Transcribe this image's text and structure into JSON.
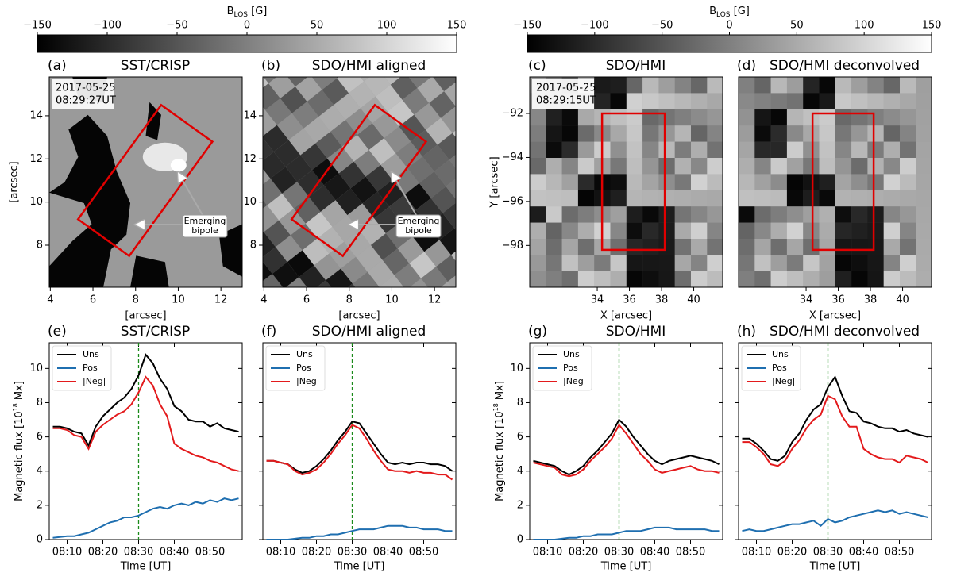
{
  "chart_data": [
    {
      "type": "colorbar",
      "label": "B",
      "label_sub": "LOS",
      "unit": " [G]",
      "lim": [
        -150,
        150
      ],
      "ticks": [
        {
          "value": -150,
          "label": "−150"
        },
        {
          "value": -100,
          "label": "−100"
        },
        {
          "value": -50,
          "label": "−50"
        },
        0,
        50,
        100,
        150
      ]
    },
    {
      "type": "colorbar",
      "label": "B",
      "label_sub": "LOS",
      "unit": " [G]",
      "lim": [
        -150,
        150
      ],
      "ticks": [
        {
          "value": -150,
          "label": "−150"
        },
        {
          "value": -100,
          "label": "−100"
        },
        {
          "value": -50,
          "label": "−50"
        },
        0,
        50,
        100,
        150
      ]
    },
    {
      "type": "image",
      "panel": "(a)",
      "title": "SST/CRISP",
      "date": "2017-05-25",
      "time": "08:29:27UT",
      "xlim": [
        3.95,
        13.0
      ],
      "ylim": [
        6.05,
        15.8
      ],
      "xticks": [
        4,
        6,
        8,
        10,
        12
      ],
      "yticks": [
        8,
        10,
        12,
        14
      ],
      "xlabel": "[arcsec]",
      "ylabel": "[arcsec]",
      "box_x": [
        5.3,
        7.7,
        11.6,
        9.2
      ],
      "box_y": [
        9.2,
        7.5,
        12.8,
        14.5
      ],
      "annotation": [
        "Emerging",
        "bipole"
      ]
    },
    {
      "type": "image",
      "panel": "(b)",
      "title": "SDO/HMI aligned",
      "xlim": [
        3.95,
        13.0
      ],
      "ylim": [
        6.05,
        15.8
      ],
      "xticks": [
        4,
        6,
        8,
        10,
        12
      ],
      "yticks": [
        8,
        10,
        12,
        14
      ],
      "xlabel": "[arcsec]",
      "box_x": [
        5.3,
        7.7,
        11.6,
        9.2
      ],
      "box_y": [
        9.2,
        7.5,
        12.8,
        14.5
      ],
      "annotation": [
        "Emerging",
        "bipole"
      ]
    },
    {
      "type": "image",
      "panel": "(c)",
      "title": "SDO/HMI",
      "date": "2017-05-25",
      "time": "08:29:15UT",
      "xlim": [
        29.8,
        41.8
      ],
      "ylim": [
        -99.9,
        -90.34
      ],
      "xticks": [
        34,
        36,
        38,
        40
      ],
      "yticks": [
        {
          "value": -98,
          "label": "−98"
        },
        {
          "value": -96,
          "label": "−96"
        },
        {
          "value": -94,
          "label": "−94"
        },
        {
          "value": -92,
          "label": "−92"
        }
      ],
      "xlabel": "X [arcsec]",
      "ylabel": "Y [arcsec]",
      "box_x": [
        34.3,
        38.2,
        38.2,
        34.3
      ],
      "box_y": [
        -98.2,
        -98.2,
        -92,
        -92
      ]
    },
    {
      "type": "image",
      "panel": "(d)",
      "title": "SDO/HMI deconvolved",
      "xlim": [
        29.8,
        41.8
      ],
      "ylim": [
        -99.9,
        -90.34
      ],
      "xticks": [
        34,
        36,
        38,
        40
      ],
      "xlabel": "X [arcsec]",
      "box_x": [
        34.4,
        38.2,
        38.2,
        34.4
      ],
      "box_y": [
        -98.2,
        -98.2,
        -92,
        -92
      ]
    },
    {
      "type": "line",
      "panel": "(e)",
      "title": "SST/CRISP",
      "xlabel": "Time [UT]",
      "ylabel": "Magnetic flux [10",
      "ylabel_sup": "18",
      "ylabel_end": " Mx]",
      "x": [
        "08:06",
        "08:08",
        "08:10",
        "08:12",
        "08:14",
        "08:16",
        "08:18",
        "08:20",
        "08:22",
        "08:24",
        "08:26",
        "08:28",
        "08:30",
        "08:32",
        "08:34",
        "08:36",
        "08:38",
        "08:40",
        "08:42",
        "08:44",
        "08:46",
        "08:48",
        "08:50",
        "08:52",
        "08:54",
        "08:56",
        "08:58"
      ],
      "xticks": [
        "08:10",
        "08:20",
        "08:30",
        "08:40",
        "08:50"
      ],
      "vline": "08:30",
      "ylim": [
        0,
        11.5
      ],
      "yticks": [
        0,
        2,
        4,
        6,
        8,
        10
      ],
      "series": [
        {
          "name": "Uns",
          "color": "#000000",
          "values": [
            6.6,
            6.6,
            6.5,
            6.3,
            6.2,
            5.5,
            6.6,
            7.2,
            7.6,
            8.0,
            8.3,
            8.8,
            9.6,
            10.8,
            10.3,
            9.4,
            8.8,
            7.8,
            7.5,
            7.0,
            6.9,
            6.9,
            6.6,
            6.8,
            6.5,
            6.4,
            6.3
          ]
        },
        {
          "name": "Pos",
          "color": "#1f6fb0",
          "values": [
            0.1,
            0.15,
            0.2,
            0.2,
            0.3,
            0.4,
            0.6,
            0.8,
            1.0,
            1.1,
            1.3,
            1.3,
            1.4,
            1.6,
            1.8,
            1.9,
            1.8,
            2.0,
            2.1,
            2.0,
            2.2,
            2.1,
            2.3,
            2.2,
            2.4,
            2.3,
            2.4
          ]
        },
        {
          "name": "|Neg|",
          "color": "#e31a1c",
          "values": [
            6.5,
            6.5,
            6.4,
            6.1,
            6.0,
            5.3,
            6.3,
            6.7,
            7.0,
            7.3,
            7.5,
            7.9,
            8.6,
            9.5,
            9.0,
            7.9,
            7.2,
            5.6,
            5.3,
            5.1,
            4.9,
            4.8,
            4.6,
            4.5,
            4.3,
            4.1,
            4.0
          ]
        }
      ]
    },
    {
      "type": "line",
      "panel": "(f)",
      "title": "SDO/HMI aligned",
      "xlabel": "Time [UT]",
      "x": [
        "08:06",
        "08:08",
        "08:10",
        "08:12",
        "08:14",
        "08:16",
        "08:18",
        "08:20",
        "08:22",
        "08:24",
        "08:26",
        "08:28",
        "08:30",
        "08:32",
        "08:34",
        "08:36",
        "08:38",
        "08:40",
        "08:42",
        "08:44",
        "08:46",
        "08:48",
        "08:50",
        "08:52",
        "08:54",
        "08:56",
        "08:58"
      ],
      "xticks": [
        "08:10",
        "08:20",
        "08:30",
        "08:40",
        "08:50"
      ],
      "vline": "08:30",
      "ylim": [
        0,
        11.5
      ],
      "yticks": [
        0,
        2,
        4,
        6,
        8,
        10
      ],
      "hide_ytick_labels": true,
      "series": [
        {
          "name": "Uns",
          "color": "#000000",
          "values": [
            4.6,
            4.6,
            4.5,
            4.4,
            4.1,
            3.9,
            4.0,
            4.3,
            4.7,
            5.2,
            5.8,
            6.3,
            6.9,
            6.8,
            6.2,
            5.6,
            5.0,
            4.5,
            4.4,
            4.5,
            4.4,
            4.5,
            4.5,
            4.4,
            4.4,
            4.3,
            4.0
          ]
        },
        {
          "name": "Pos",
          "color": "#1f6fb0",
          "values": [
            0.0,
            0.0,
            0.0,
            0.0,
            0.05,
            0.1,
            0.1,
            0.2,
            0.2,
            0.3,
            0.3,
            0.4,
            0.5,
            0.6,
            0.6,
            0.6,
            0.7,
            0.8,
            0.8,
            0.8,
            0.7,
            0.7,
            0.6,
            0.6,
            0.6,
            0.5,
            0.5
          ]
        },
        {
          "name": "|Neg|",
          "color": "#e31a1c",
          "values": [
            4.6,
            4.6,
            4.5,
            4.4,
            4.0,
            3.8,
            3.9,
            4.1,
            4.5,
            5.0,
            5.6,
            6.1,
            6.7,
            6.5,
            5.9,
            5.2,
            4.6,
            4.1,
            4.0,
            4.0,
            3.9,
            4.0,
            3.9,
            3.9,
            3.8,
            3.8,
            3.5
          ]
        }
      ]
    },
    {
      "type": "line",
      "panel": "(g)",
      "title": "SDO/HMI",
      "xlabel": "Time [UT]",
      "ylabel": "Magnetic flux [10",
      "ylabel_sup": "18",
      "ylabel_end": " Mx]",
      "x": [
        "08:06",
        "08:08",
        "08:10",
        "08:12",
        "08:14",
        "08:16",
        "08:18",
        "08:20",
        "08:22",
        "08:24",
        "08:26",
        "08:28",
        "08:30",
        "08:32",
        "08:34",
        "08:36",
        "08:38",
        "08:40",
        "08:42",
        "08:44",
        "08:46",
        "08:48",
        "08:50",
        "08:52",
        "08:54",
        "08:56",
        "08:58"
      ],
      "xticks": [
        "08:10",
        "08:20",
        "08:30",
        "08:40",
        "08:50"
      ],
      "vline": "08:30",
      "ylim": [
        0,
        11.5
      ],
      "yticks": [
        0,
        2,
        4,
        6,
        8,
        10
      ],
      "series": [
        {
          "name": "Uns",
          "color": "#000000",
          "values": [
            4.6,
            4.5,
            4.4,
            4.3,
            4.0,
            3.8,
            4.0,
            4.3,
            4.8,
            5.2,
            5.7,
            6.2,
            7.0,
            6.6,
            6.0,
            5.5,
            5.0,
            4.6,
            4.4,
            4.6,
            4.7,
            4.8,
            4.9,
            4.8,
            4.7,
            4.6,
            4.4
          ]
        },
        {
          "name": "Pos",
          "color": "#1f6fb0",
          "values": [
            0.0,
            0.0,
            0.0,
            0.0,
            0.05,
            0.1,
            0.1,
            0.2,
            0.2,
            0.3,
            0.3,
            0.3,
            0.4,
            0.5,
            0.5,
            0.5,
            0.6,
            0.7,
            0.7,
            0.7,
            0.6,
            0.6,
            0.6,
            0.6,
            0.6,
            0.5,
            0.5
          ]
        },
        {
          "name": "|Neg|",
          "color": "#e31a1c",
          "values": [
            4.5,
            4.4,
            4.3,
            4.2,
            3.8,
            3.7,
            3.8,
            4.1,
            4.6,
            5.0,
            5.4,
            5.9,
            6.7,
            6.2,
            5.6,
            5.0,
            4.6,
            4.1,
            3.9,
            4.0,
            4.1,
            4.2,
            4.3,
            4.1,
            4.0,
            4.0,
            3.9
          ]
        }
      ]
    },
    {
      "type": "line",
      "panel": "(h)",
      "title": "SDO/HMI deconvolved",
      "xlabel": "Time [UT]",
      "x": [
        "08:06",
        "08:08",
        "08:10",
        "08:12",
        "08:14",
        "08:16",
        "08:18",
        "08:20",
        "08:22",
        "08:24",
        "08:26",
        "08:28",
        "08:30",
        "08:32",
        "08:34",
        "08:36",
        "08:38",
        "08:40",
        "08:42",
        "08:44",
        "08:46",
        "08:48",
        "08:50",
        "08:52",
        "08:54",
        "08:56",
        "08:58"
      ],
      "xticks": [
        "08:10",
        "08:20",
        "08:30",
        "08:40",
        "08:50"
      ],
      "vline": "08:30",
      "ylim": [
        0,
        11.5
      ],
      "yticks": [
        0,
        2,
        4,
        6,
        8,
        10
      ],
      "hide_ytick_labels": true,
      "series": [
        {
          "name": "Uns",
          "color": "#000000",
          "values": [
            5.9,
            5.9,
            5.6,
            5.2,
            4.7,
            4.6,
            4.9,
            5.7,
            6.2,
            7.0,
            7.6,
            7.9,
            8.9,
            9.5,
            8.4,
            7.5,
            7.4,
            6.9,
            6.8,
            6.6,
            6.5,
            6.5,
            6.3,
            6.4,
            6.2,
            6.1,
            6.0
          ]
        },
        {
          "name": "Pos",
          "color": "#1f6fb0",
          "values": [
            0.5,
            0.6,
            0.5,
            0.5,
            0.6,
            0.7,
            0.8,
            0.9,
            0.9,
            1.0,
            1.1,
            0.8,
            1.2,
            1.0,
            1.1,
            1.3,
            1.4,
            1.5,
            1.6,
            1.7,
            1.6,
            1.7,
            1.5,
            1.6,
            1.5,
            1.4,
            1.3
          ]
        },
        {
          "name": "|Neg|",
          "color": "#e31a1c",
          "values": [
            5.7,
            5.7,
            5.4,
            5.0,
            4.4,
            4.3,
            4.6,
            5.3,
            5.8,
            6.5,
            7.0,
            7.3,
            8.4,
            8.2,
            7.2,
            6.6,
            6.6,
            5.3,
            5.0,
            4.8,
            4.7,
            4.7,
            4.5,
            4.9,
            4.8,
            4.7,
            4.5
          ]
        }
      ]
    }
  ]
}
